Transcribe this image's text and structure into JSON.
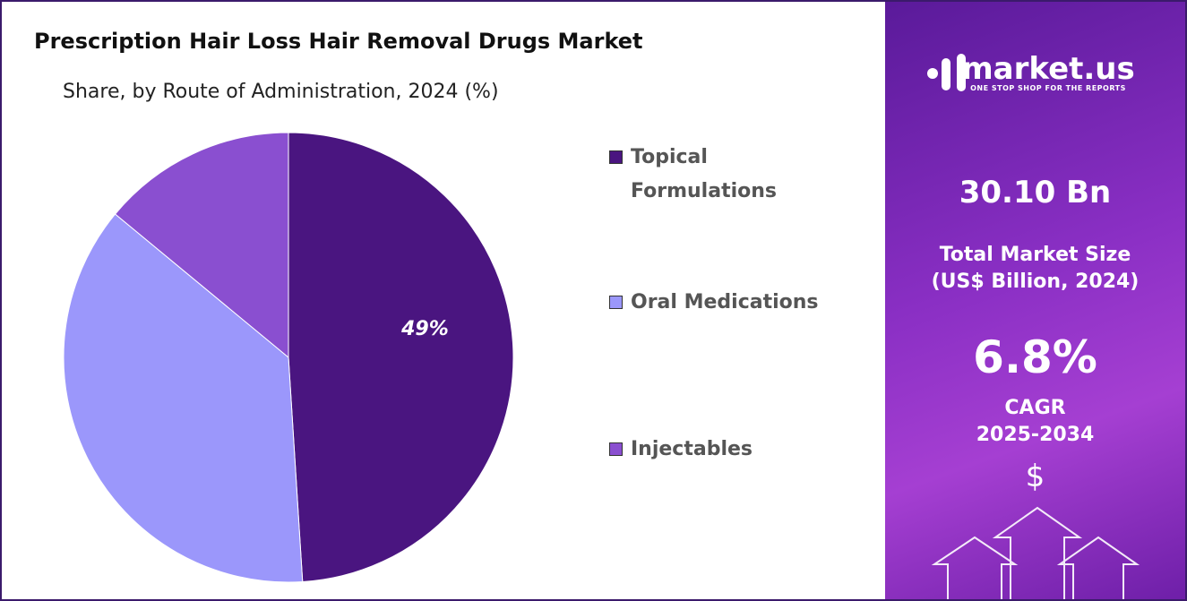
{
  "chart_data": {
    "type": "pie",
    "title": "Prescription Hair Loss Hair Removal Drugs Market",
    "subtitle": "Share, by Route of Administration, 2024 (%)",
    "categories": [
      "Topical Formulations",
      "Oral Medications",
      "Injectables"
    ],
    "values": [
      49,
      37,
      14
    ],
    "value_labels": [
      "49%",
      null,
      null
    ],
    "colors": [
      "#4a1580",
      "#9b97fb",
      "#8a4fd0"
    ],
    "legend": "right"
  },
  "panel": {
    "brand": "market.us",
    "tagline": "ONE STOP SHOP FOR THE REPORTS",
    "market_size": "30.10 Bn",
    "market_size_label": "Total Market Size",
    "market_size_unit": "(US$ Billion, 2024)",
    "cagr": "6.8%",
    "cagr_label": "CAGR",
    "cagr_period": "2025-2034",
    "currency": "$"
  }
}
